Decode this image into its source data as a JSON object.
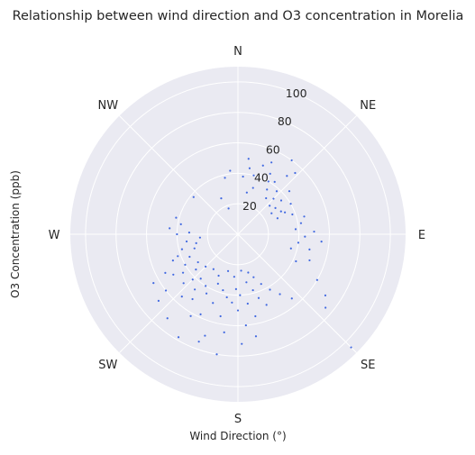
{
  "chart_data": {
    "type": "scatter",
    "projection": "polar",
    "title": "Relationship between wind direction and O3 concentration in Morelia",
    "xlabel": "Wind Direction (°)",
    "ylabel": "O3 Concentration (ppb)",
    "theta_direction": "clockwise",
    "theta_zero": "N",
    "direction_labels": [
      {
        "label": "N",
        "deg": 0
      },
      {
        "label": "NE",
        "deg": 45
      },
      {
        "label": "E",
        "deg": 90
      },
      {
        "label": "SE",
        "deg": 135
      },
      {
        "label": "S",
        "deg": 180
      },
      {
        "label": "SW",
        "deg": 225
      },
      {
        "label": "W",
        "deg": 270
      },
      {
        "label": "NW",
        "deg": 315
      }
    ],
    "r_ticks": [
      20,
      40,
      60,
      80,
      100
    ],
    "r_range": [
      0,
      110
    ],
    "grid": true,
    "colors": {
      "background": "#eaeaf2",
      "grid": "#ffffff",
      "marker": "#4169e1"
    },
    "series": [
      {
        "points": [
          {
            "dir": 28,
            "o3": 45
          },
          {
            "dir": 30,
            "o3": 40
          },
          {
            "dir": 33,
            "o3": 35
          },
          {
            "dir": 35,
            "o3": 42
          },
          {
            "dir": 38,
            "o3": 30
          },
          {
            "dir": 40,
            "o3": 50
          },
          {
            "dir": 42,
            "o3": 38
          },
          {
            "dir": 45,
            "o3": 33
          },
          {
            "dir": 48,
            "o3": 28
          },
          {
            "dir": 50,
            "o3": 44
          },
          {
            "dir": 52,
            "o3": 36
          },
          {
            "dir": 55,
            "o3": 30
          },
          {
            "dir": 58,
            "o3": 26
          },
          {
            "dir": 60,
            "o3": 40
          },
          {
            "dir": 62,
            "o3": 32
          },
          {
            "dir": 65,
            "o3": 34
          },
          {
            "dir": 68,
            "o3": 28
          },
          {
            "dir": 70,
            "o3": 38
          },
          {
            "dir": 43,
            "o3": 55
          },
          {
            "dir": 36,
            "o3": 60
          },
          {
            "dir": 25,
            "o3": 52
          },
          {
            "dir": 20,
            "o3": 48
          },
          {
            "dir": 15,
            "o3": 40
          },
          {
            "dir": 10,
            "o3": 44
          },
          {
            "dir": 5,
            "o3": 38
          },
          {
            "dir": 12,
            "o3": 28
          },
          {
            "dir": 18,
            "o3": 32
          },
          {
            "dir": 8,
            "o3": 50
          },
          {
            "dir": 353,
            "o3": 42
          },
          {
            "dir": 347,
            "o3": 38
          },
          {
            "dir": 340,
            "o3": 18
          },
          {
            "dir": 335,
            "o3": 26
          },
          {
            "dir": 310,
            "o3": 38
          },
          {
            "dir": 75,
            "o3": 45
          },
          {
            "dir": 80,
            "o3": 42
          },
          {
            "dir": 85,
            "o3": 38
          },
          {
            "dir": 88,
            "o3": 50
          },
          {
            "dir": 92,
            "o3": 44
          },
          {
            "dir": 95,
            "o3": 55
          },
          {
            "dir": 98,
            "o3": 40
          },
          {
            "dir": 102,
            "o3": 48
          },
          {
            "dir": 105,
            "o3": 36
          },
          {
            "dir": 110,
            "o3": 50
          },
          {
            "dir": 115,
            "o3": 42
          },
          {
            "dir": 120,
            "o3": 60
          },
          {
            "dir": 125,
            "o3": 70
          },
          {
            "dir": 130,
            "o3": 75
          },
          {
            "dir": 135,
            "o3": 105
          },
          {
            "dir": 140,
            "o3": 55
          },
          {
            "dir": 145,
            "o3": 48
          },
          {
            "dir": 150,
            "o3": 42
          },
          {
            "dir": 155,
            "o3": 36
          },
          {
            "dir": 158,
            "o3": 50
          },
          {
            "dir": 160,
            "o3": 30
          },
          {
            "dir": 162,
            "o3": 44
          },
          {
            "dir": 165,
            "o3": 38
          },
          {
            "dir": 168,
            "o3": 55
          },
          {
            "dir": 170,
            "o3": 32
          },
          {
            "dir": 172,
            "o3": 46
          },
          {
            "dir": 175,
            "o3": 60
          },
          {
            "dir": 178,
            "o3": 40
          },
          {
            "dir": 180,
            "o3": 50
          },
          {
            "dir": 182,
            "o3": 36
          },
          {
            "dir": 185,
            "o3": 45
          },
          {
            "dir": 188,
            "o3": 65
          },
          {
            "dir": 190,
            "o3": 42
          },
          {
            "dir": 192,
            "o3": 55
          },
          {
            "dir": 195,
            "o3": 38
          },
          {
            "dir": 198,
            "o3": 70
          },
          {
            "dir": 200,
            "o3": 48
          },
          {
            "dir": 202,
            "o3": 35
          },
          {
            "dir": 205,
            "o3": 58
          },
          {
            "dir": 208,
            "o3": 44
          },
          {
            "dir": 210,
            "o3": 62
          },
          {
            "dir": 212,
            "o3": 40
          },
          {
            "dir": 215,
            "o3": 52
          },
          {
            "dir": 218,
            "o3": 46
          },
          {
            "dir": 220,
            "o3": 38
          },
          {
            "dir": 222,
            "o3": 55
          },
          {
            "dir": 225,
            "o3": 42
          },
          {
            "dir": 228,
            "o3": 48
          },
          {
            "dir": 230,
            "o3": 36
          },
          {
            "dir": 232,
            "o3": 60
          },
          {
            "dir": 235,
            "o3": 44
          },
          {
            "dir": 238,
            "o3": 50
          },
          {
            "dir": 240,
            "o3": 40
          },
          {
            "dir": 242,
            "o3": 54
          },
          {
            "dir": 245,
            "o3": 35
          },
          {
            "dir": 248,
            "o3": 46
          },
          {
            "dir": 250,
            "o3": 42
          },
          {
            "dir": 252,
            "o3": 30
          },
          {
            "dir": 255,
            "o3": 38
          },
          {
            "dir": 258,
            "o3": 28
          },
          {
            "dir": 262,
            "o3": 34
          },
          {
            "dir": 265,
            "o3": 25
          },
          {
            "dir": 270,
            "o3": 40
          },
          {
            "dir": 272,
            "o3": 32
          },
          {
            "dir": 275,
            "o3": 45
          },
          {
            "dir": 280,
            "o3": 38
          },
          {
            "dir": 285,
            "o3": 42
          },
          {
            "dir": 205,
            "o3": 30
          },
          {
            "dir": 195,
            "o3": 25
          },
          {
            "dir": 185,
            "o3": 28
          },
          {
            "dir": 175,
            "o3": 24
          },
          {
            "dir": 165,
            "o3": 26
          },
          {
            "dir": 215,
            "o3": 28
          },
          {
            "dir": 225,
            "o3": 30
          },
          {
            "dir": 235,
            "o3": 32
          },
          {
            "dir": 200,
            "o3": 75
          },
          {
            "dir": 210,
            "o3": 78
          },
          {
            "dir": 190,
            "o3": 80
          },
          {
            "dir": 220,
            "o3": 72
          },
          {
            "dir": 230,
            "o3": 68
          },
          {
            "dir": 240,
            "o3": 64
          },
          {
            "dir": 178,
            "o3": 72
          },
          {
            "dir": 170,
            "o3": 68
          }
        ]
      }
    ]
  }
}
